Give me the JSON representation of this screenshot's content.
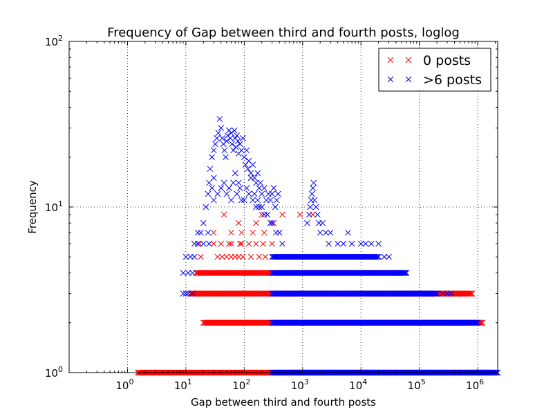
{
  "chart_data": {
    "type": "scatter",
    "title": "Frequency of Gap between third and fourth posts, loglog",
    "xlabel": "Gap between third and fourth posts",
    "ylabel": "Frequency",
    "x_scale": "log",
    "y_scale": "log",
    "xlim": [
      0.1,
      2200000
    ],
    "ylim": [
      1,
      100
    ],
    "grid": true,
    "marker": "x",
    "x_ticks": [
      {
        "base": "10",
        "exp": "0"
      },
      {
        "base": "10",
        "exp": "1"
      },
      {
        "base": "10",
        "exp": "2"
      },
      {
        "base": "10",
        "exp": "3"
      },
      {
        "base": "10",
        "exp": "4"
      },
      {
        "base": "10",
        "exp": "5"
      },
      {
        "base": "10",
        "exp": "6"
      }
    ],
    "y_ticks": [
      {
        "base": "10",
        "exp": "0"
      },
      {
        "base": "10",
        "exp": "1"
      },
      {
        "base": "10",
        "exp": "2"
      }
    ],
    "legend": {
      "position": "upper-right"
    },
    "series": [
      {
        "name": "0 posts",
        "color": "#ff0000",
        "bands": [
          {
            "y": 1,
            "xmin": 1.5,
            "xmax": 2000000
          },
          {
            "y": 2,
            "xmin": 20,
            "xmax": 1200000
          },
          {
            "y": 3,
            "xmin": 12,
            "xmax": 800000
          },
          {
            "y": 4,
            "xmin": 15,
            "xmax": 60000
          }
        ],
        "points": [
          [
            18,
            5
          ],
          [
            35,
            5
          ],
          [
            42,
            5
          ],
          [
            50,
            5
          ],
          [
            60,
            5
          ],
          [
            70,
            5
          ],
          [
            80,
            5
          ],
          [
            95,
            5
          ],
          [
            130,
            5
          ],
          [
            180,
            5
          ],
          [
            230,
            5
          ],
          [
            350,
            5
          ],
          [
            17,
            6
          ],
          [
            30,
            6
          ],
          [
            40,
            6
          ],
          [
            55,
            6
          ],
          [
            60,
            6
          ],
          [
            85,
            6
          ],
          [
            90,
            6
          ],
          [
            120,
            6
          ],
          [
            160,
            6
          ],
          [
            210,
            6
          ],
          [
            300,
            6
          ],
          [
            30,
            7
          ],
          [
            60,
            7
          ],
          [
            90,
            7
          ],
          [
            140,
            7
          ],
          [
            220,
            7
          ],
          [
            400,
            7
          ],
          [
            80,
            8
          ],
          [
            160,
            8
          ],
          [
            320,
            8
          ],
          [
            45,
            9
          ],
          [
            200,
            9
          ],
          [
            450,
            9
          ],
          [
            900,
            9
          ],
          [
            1500,
            9
          ]
        ]
      },
      {
        "name": ">6 posts",
        "color": "#0000ff",
        "bands": [
          {
            "y": 1,
            "xmin": 300,
            "xmax": 2200000
          },
          {
            "y": 2,
            "xmin": 300,
            "xmax": 1000000
          },
          {
            "y": 3,
            "xmin": 300,
            "xmax": 200000
          },
          {
            "y": 4,
            "xmin": 300,
            "xmax": 60000
          },
          {
            "y": 5,
            "xmin": 300,
            "xmax": 20000
          }
        ],
        "points": [
          [
            9,
            3
          ],
          [
            10,
            3
          ],
          [
            11,
            3
          ],
          [
            13,
            3
          ],
          [
            9,
            4
          ],
          [
            11,
            4
          ],
          [
            13,
            4
          ],
          [
            10,
            5
          ],
          [
            12,
            5
          ],
          [
            14,
            5
          ],
          [
            14,
            6
          ],
          [
            16,
            6
          ],
          [
            20,
            6
          ],
          [
            25,
            6
          ],
          [
            16,
            7
          ],
          [
            18,
            7
          ],
          [
            20,
            8
          ],
          [
            24,
            7
          ],
          [
            22,
            10
          ],
          [
            24,
            12
          ],
          [
            28,
            13
          ],
          [
            25,
            14
          ],
          [
            30,
            15
          ],
          [
            26,
            17
          ],
          [
            28,
            20
          ],
          [
            30,
            22
          ],
          [
            32,
            24
          ],
          [
            34,
            26
          ],
          [
            36,
            28
          ],
          [
            38,
            34
          ],
          [
            40,
            30
          ],
          [
            42,
            26
          ],
          [
            44,
            24
          ],
          [
            46,
            22
          ],
          [
            48,
            20
          ],
          [
            50,
            25
          ],
          [
            52,
            27
          ],
          [
            55,
            29
          ],
          [
            58,
            26
          ],
          [
            60,
            28
          ],
          [
            62,
            24
          ],
          [
            65,
            22
          ],
          [
            68,
            29
          ],
          [
            70,
            26
          ],
          [
            72,
            23
          ],
          [
            75,
            27
          ],
          [
            78,
            25
          ],
          [
            80,
            21
          ],
          [
            85,
            24
          ],
          [
            90,
            22
          ],
          [
            95,
            26
          ],
          [
            100,
            20
          ],
          [
            105,
            18
          ],
          [
            110,
            22
          ],
          [
            115,
            17
          ],
          [
            120,
            19
          ],
          [
            130,
            16
          ],
          [
            140,
            18
          ],
          [
            150,
            15
          ],
          [
            160,
            14
          ],
          [
            170,
            16
          ],
          [
            180,
            13
          ],
          [
            190,
            14
          ],
          [
            200,
            12
          ],
          [
            220,
            13
          ],
          [
            240,
            11
          ],
          [
            260,
            12
          ],
          [
            280,
            11
          ],
          [
            300,
            12
          ],
          [
            320,
            13
          ],
          [
            340,
            10
          ],
          [
            360,
            11
          ],
          [
            380,
            12
          ],
          [
            30,
            11
          ],
          [
            35,
            12
          ],
          [
            40,
            13
          ],
          [
            45,
            14
          ],
          [
            50,
            12
          ],
          [
            55,
            13
          ],
          [
            60,
            11
          ],
          [
            65,
            14
          ],
          [
            70,
            16
          ],
          [
            75,
            12
          ],
          [
            80,
            14
          ],
          [
            85,
            13
          ],
          [
            90,
            11
          ],
          [
            100,
            11
          ],
          [
            110,
            13
          ],
          [
            120,
            12
          ],
          [
            130,
            15
          ],
          [
            140,
            11
          ],
          [
            150,
            12
          ],
          [
            160,
            10
          ],
          [
            170,
            11
          ],
          [
            180,
            10
          ],
          [
            200,
            10
          ],
          [
            220,
            9
          ],
          [
            250,
            9
          ],
          [
            280,
            8
          ],
          [
            300,
            8
          ],
          [
            350,
            7
          ],
          [
            400,
            7
          ],
          [
            450,
            6
          ],
          [
            1200,
            8
          ],
          [
            1300,
            9
          ],
          [
            1350,
            10
          ],
          [
            1400,
            11
          ],
          [
            1450,
            12
          ],
          [
            1500,
            13
          ],
          [
            1550,
            14
          ],
          [
            1600,
            11
          ],
          [
            1700,
            10
          ],
          [
            1800,
            9
          ],
          [
            1900,
            8
          ],
          [
            2000,
            7
          ],
          [
            2200,
            8
          ],
          [
            2500,
            7
          ],
          [
            2800,
            6
          ],
          [
            3000,
            7
          ],
          [
            4000,
            6
          ],
          [
            5000,
            6
          ],
          [
            6000,
            7
          ],
          [
            7000,
            6
          ],
          [
            10000,
            6
          ],
          [
            12000,
            6
          ],
          [
            15000,
            6
          ],
          [
            20000,
            6
          ],
          [
            8000,
            5
          ],
          [
            25000,
            5
          ],
          [
            30000,
            5
          ],
          [
            35000,
            4
          ],
          [
            40000,
            4
          ],
          [
            45000,
            4
          ],
          [
            55000,
            4
          ],
          [
            70000,
            3
          ],
          [
            90000,
            3
          ],
          [
            150000,
            3
          ],
          [
            250000,
            3
          ],
          [
            300000,
            3
          ],
          [
            350000,
            3
          ]
        ]
      }
    ]
  }
}
